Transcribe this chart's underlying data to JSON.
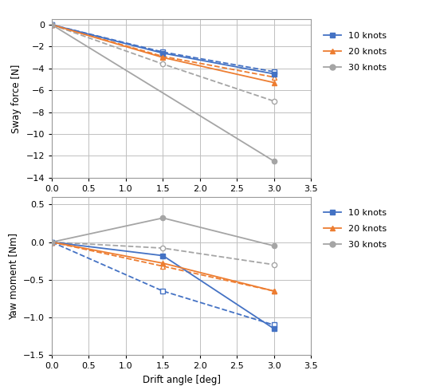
{
  "top_chart": {
    "xlabel": "Drift angle [deg]",
    "ylabel": "Sway force [N]",
    "xlim": [
      0,
      3.5
    ],
    "ylim": [
      -14,
      0.5
    ],
    "xticks": [
      0,
      0.5,
      1,
      1.5,
      2,
      2.5,
      3,
      3.5
    ],
    "yticks": [
      0,
      -2,
      -4,
      -6,
      -8,
      -10,
      -12,
      -14
    ],
    "series": [
      {
        "x": [
          0,
          1.5,
          3.0
        ],
        "y": [
          0,
          -2.5,
          -4.3
        ],
        "color": "#4472C4",
        "linestyle": "dashed",
        "marker": "s",
        "mfc": "white"
      },
      {
        "x": [
          0,
          1.5,
          3.0
        ],
        "y": [
          0,
          -2.9,
          -4.8
        ],
        "color": "#ED7D31",
        "linestyle": "dashed",
        "marker": "^",
        "mfc": "white"
      },
      {
        "x": [
          0,
          1.5,
          3.0
        ],
        "y": [
          0,
          -3.6,
          -7.0
        ],
        "color": "#A5A5A5",
        "linestyle": "dashed",
        "marker": "o",
        "mfc": "white"
      },
      {
        "x": [
          0,
          1.5,
          3.0
        ],
        "y": [
          0,
          -2.6,
          -4.5
        ],
        "color": "#4472C4",
        "linestyle": "solid",
        "marker": "s",
        "mfc": "#4472C4"
      },
      {
        "x": [
          0,
          1.5,
          3.0
        ],
        "y": [
          0,
          -3.0,
          -5.3
        ],
        "color": "#ED7D31",
        "linestyle": "solid",
        "marker": "^",
        "mfc": "#ED7D31"
      },
      {
        "x": [
          0,
          3.0
        ],
        "y": [
          0,
          -12.5
        ],
        "color": "#A5A5A5",
        "linestyle": "solid",
        "marker": "o",
        "mfc": "#A5A5A5"
      }
    ]
  },
  "bottom_chart": {
    "xlabel": "Drift angle [deg]",
    "ylabel": "Yaw moment [Nm]",
    "xlim": [
      0,
      3.5
    ],
    "ylim": [
      -1.5,
      0.6
    ],
    "xticks": [
      0,
      0.5,
      1,
      1.5,
      2,
      2.5,
      3,
      3.5
    ],
    "yticks": [
      0.5,
      0,
      -0.5,
      -1,
      -1.5
    ],
    "series": [
      {
        "x": [
          0,
          1.5,
          3.0
        ],
        "y": [
          0,
          -0.65,
          -1.1
        ],
        "color": "#4472C4",
        "linestyle": "dashed",
        "marker": "s",
        "mfc": "white"
      },
      {
        "x": [
          0,
          1.5,
          3.0
        ],
        "y": [
          0,
          -0.32,
          -0.65
        ],
        "color": "#ED7D31",
        "linestyle": "dashed",
        "marker": "^",
        "mfc": "white"
      },
      {
        "x": [
          0,
          1.5,
          3.0
        ],
        "y": [
          0,
          -0.08,
          -0.3
        ],
        "color": "#A5A5A5",
        "linestyle": "dashed",
        "marker": "o",
        "mfc": "white"
      },
      {
        "x": [
          0,
          1.5,
          3.0
        ],
        "y": [
          0,
          -0.18,
          -1.15
        ],
        "color": "#4472C4",
        "linestyle": "solid",
        "marker": "s",
        "mfc": "#4472C4"
      },
      {
        "x": [
          0,
          1.5,
          3.0
        ],
        "y": [
          0,
          -0.28,
          -0.65
        ],
        "color": "#ED7D31",
        "linestyle": "solid",
        "marker": "^",
        "mfc": "#ED7D31"
      },
      {
        "x": [
          0,
          1.5,
          3.0
        ],
        "y": [
          0,
          0.32,
          -0.05
        ],
        "color": "#A5A5A5",
        "linestyle": "solid",
        "marker": "o",
        "mfc": "#A5A5A5"
      }
    ]
  },
  "legend": [
    {
      "color": "#4472C4",
      "marker": "s",
      "label": "10 knots"
    },
    {
      "color": "#ED7D31",
      "marker": "^",
      "label": "20 knots"
    },
    {
      "color": "#A5A5A5",
      "marker": "o",
      "label": "30 knots"
    }
  ],
  "background_color": "#FFFFFF",
  "grid_color": "#C0C0C0",
  "plot_bg": "#F2F2F2"
}
